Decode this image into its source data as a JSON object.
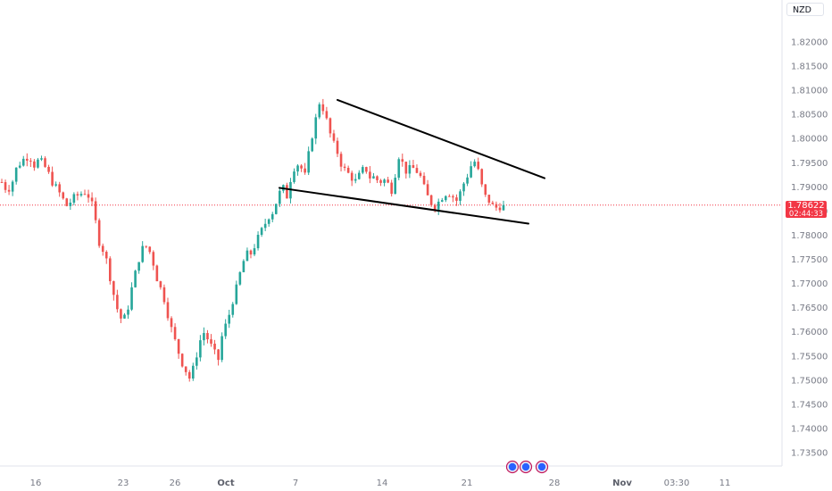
{
  "symbol": "NZD",
  "colors": {
    "up": "#26a69a",
    "down": "#ef5350",
    "current_price": "#f23645",
    "trendline": "#000000",
    "axis_text": "#787b86",
    "event_marker": "#2962ff"
  },
  "current_price": {
    "value": "1.78622",
    "timer": "02:44:33"
  },
  "event_markers": [
    "economic-event",
    "economic-event",
    "economic-event"
  ],
  "chart_data": {
    "type": "candlestick",
    "title": "",
    "y_axis": {
      "ticks": [
        "1.82000",
        "1.81500",
        "1.81000",
        "1.80500",
        "1.80000",
        "1.79500",
        "1.79000",
        "1.78500",
        "1.78000",
        "1.77500",
        "1.77000",
        "1.76500",
        "1.76000",
        "1.75500",
        "1.75000",
        "1.74500",
        "1.74000",
        "1.73500"
      ],
      "range": [
        1.7325,
        1.8265
      ]
    },
    "x_axis": {
      "ticks": [
        {
          "label": "16",
          "bold": false
        },
        {
          "label": "23",
          "bold": false
        },
        {
          "label": "26",
          "bold": false
        },
        {
          "label": "Oct",
          "bold": true
        },
        {
          "label": "7",
          "bold": false
        },
        {
          "label": "14",
          "bold": false
        },
        {
          "label": "21",
          "bold": false
        },
        {
          "label": "28",
          "bold": false
        },
        {
          "label": "Nov",
          "bold": true
        },
        {
          "label": "03:30",
          "bold": false
        },
        {
          "label": "11",
          "bold": false
        }
      ]
    },
    "price_path": [
      1.791,
      1.7895,
      1.79,
      1.7935,
      1.795,
      1.796,
      1.7965,
      1.7945,
      1.7955,
      1.7948,
      1.793,
      1.791,
      1.7895,
      1.788,
      1.786,
      1.787,
      1.788,
      1.7885,
      1.789,
      1.788,
      1.785,
      1.779,
      1.777,
      1.774,
      1.769,
      1.765,
      1.7625,
      1.763,
      1.768,
      1.772,
      1.776,
      1.778,
      1.777,
      1.774,
      1.77,
      1.768,
      1.764,
      1.76,
      1.757,
      1.754,
      1.752,
      1.75,
      1.754,
      1.758,
      1.76,
      1.758,
      1.756,
      1.754,
      1.76,
      1.762,
      1.766,
      1.769,
      1.773,
      1.776,
      1.776,
      1.778,
      1.78,
      1.782,
      1.784,
      1.785,
      1.788,
      1.79,
      1.788,
      1.793,
      1.795,
      1.794,
      1.792,
      1.799,
      1.803,
      1.8075,
      1.806,
      1.802,
      1.799,
      1.797,
      1.794,
      1.793,
      1.792,
      1.791,
      1.793,
      1.794,
      1.792,
      1.792,
      1.791,
      1.7915,
      1.7905,
      1.789,
      1.797,
      1.795,
      1.793,
      1.794,
      1.7935,
      1.792,
      1.789,
      1.787,
      1.786,
      1.787,
      1.7885,
      1.789,
      1.788,
      1.787,
      1.79,
      1.792,
      1.7945,
      1.7955,
      1.791,
      1.788,
      1.787,
      1.7855,
      1.786,
      1.7862
    ],
    "trendlines": [
      {
        "name": "upper",
        "from": {
          "x": "Oct 9",
          "y": 1.808
        },
        "to": {
          "x": "Oct 28",
          "y": 1.7918
        }
      },
      {
        "name": "lower",
        "from": {
          "x": "Oct 3",
          "y": 1.7898
        },
        "to": {
          "x": "Oct 27",
          "y": 1.7824
        }
      }
    ],
    "grid": false,
    "legend": "none"
  }
}
